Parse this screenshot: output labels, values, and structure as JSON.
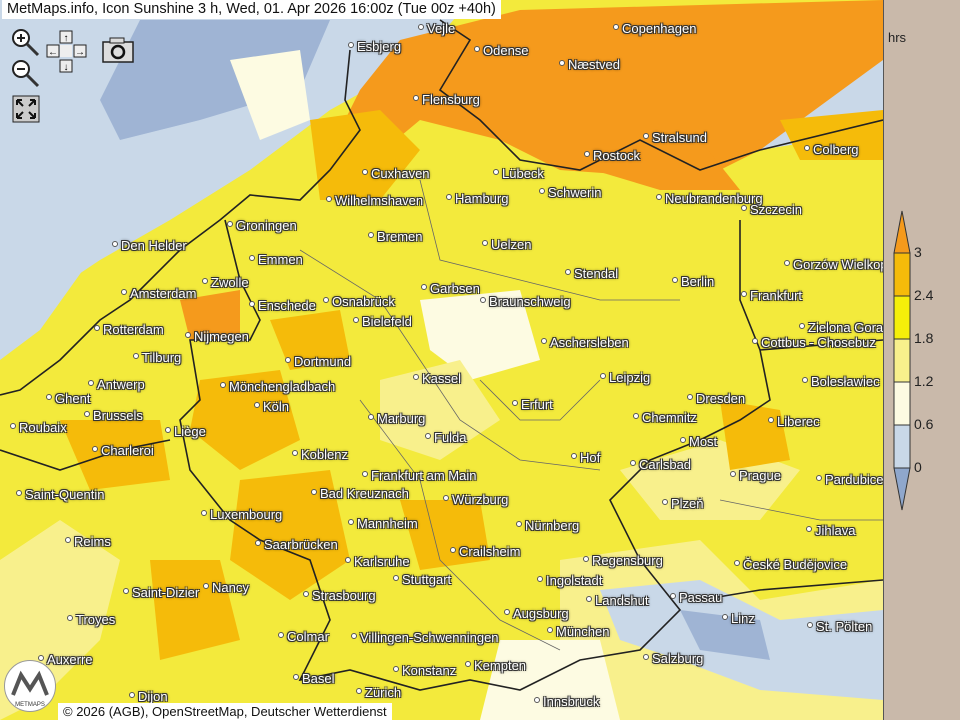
{
  "title": "MetMaps.info, Icon Sunshine 3 h, Wed, 01. Apr 2026 16:00z (Tue 00z +40h)",
  "controls": {
    "zoom_in": "zoom-in-icon",
    "zoom_out": "zoom-out-icon",
    "pan": "pan-arrows-icon",
    "screenshot": "camera-icon",
    "fullscreen": "fullscreen-icon"
  },
  "legend": {
    "unit": "hrs",
    "ticks": [
      "3",
      "2.4",
      "1.8",
      "1.2",
      "0.6",
      "0"
    ],
    "colors": [
      "#f59a1c",
      "#f5bb0a",
      "#f5ef0a",
      "#f8f08c",
      "#fdfbe2",
      "#c9d8e8",
      "#8fa7cc"
    ]
  },
  "cities": [
    "Vejle",
    "Esbjerg",
    "Odense",
    "Copenhagen",
    "Næstved",
    "Flensburg",
    "Stralsund",
    "Rostock",
    "Colberg",
    "Cuxhaven",
    "Lübeck",
    "Wilhelmshaven",
    "Hamburg",
    "Schwerin",
    "Neubrandenburg",
    "Szczecin",
    "Groningen",
    "Bremen",
    "Den Helder",
    "Uelzen",
    "Emmen",
    "Gorzów Wielkopolski",
    "Stendal",
    "Berlin",
    "Zwolle",
    "Amsterdam",
    "Garbsen",
    "Enschede",
    "Osnabrück",
    "Braunschweig",
    "Frankfurt",
    "Rotterdam",
    "Bielefeld",
    "Zielona Gora",
    "Nijmegen",
    "Aschersleben",
    "Cottbus - Chosebuz",
    "Tilburg",
    "Dortmund",
    "Leipzig",
    "Kassel",
    "Antwerp",
    "Mönchengladbach",
    "Bolesławiec",
    "Ghent",
    "Dresden",
    "Köln",
    "Erfurt",
    "Brussels",
    "Marburg",
    "Chemnitz",
    "Liberec",
    "Roubaix",
    "Liège",
    "Fulda",
    "Most",
    "Charleroi",
    "Koblenz",
    "Hof",
    "Carlsbad",
    "Frankfurt am Main",
    "Prague",
    "Pardubice",
    "Saint-Quentin",
    "Bad Kreuznach",
    "Würzburg",
    "Plzeň",
    "Luxembourg",
    "Nürnberg",
    "Mannheim",
    "Jihlava",
    "Reims",
    "Saarbrücken",
    "Crailsheim",
    "Regensburg",
    "Karlsruhe",
    "České Budějovice",
    "Stuttgart",
    "Ingolstadt",
    "Saint-Dizier",
    "Nancy",
    "Strasbourg",
    "Landshut",
    "Passau",
    "Augsburg",
    "Troyes",
    "Linz",
    "St. Pölten",
    "Colmar",
    "Villingen-Schwenningen",
    "München",
    "Salzburg",
    "Auxerre",
    "Konstanz",
    "Kempten",
    "Basel",
    "Zürich",
    "Dijon",
    "Innsbruck"
  ],
  "copyright": "© 2026 (AGB), OpenStreetMap, Deutscher Wetterdienst",
  "logo_text": "METMAPS"
}
